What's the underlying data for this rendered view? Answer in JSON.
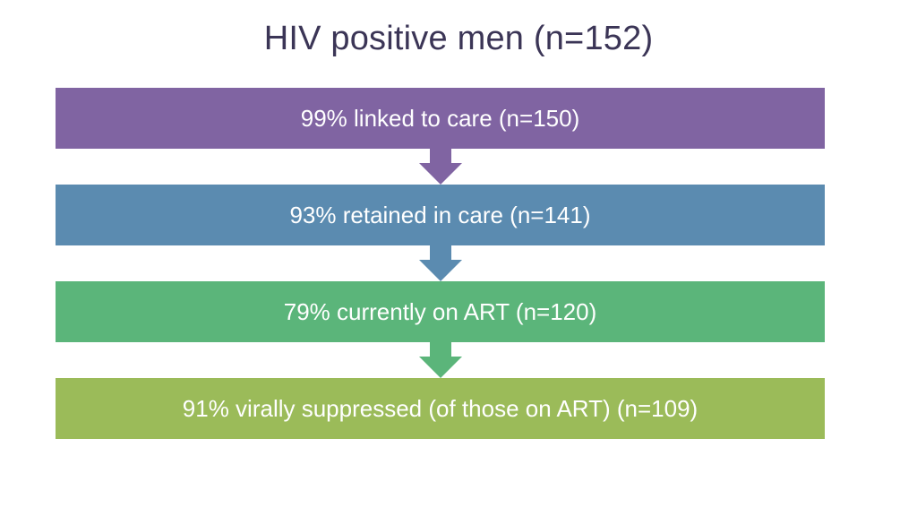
{
  "title": "HIV positive men (n=152)",
  "steps": [
    {
      "label": "99% linked to care (n=150)",
      "color": "#8064a2"
    },
    {
      "label": "93% retained in care (n=141)",
      "color": "#5b8bb0"
    },
    {
      "label": "79% currently on ART (n=120)",
      "color": "#5bb57a"
    },
    {
      "label": "91% virally suppressed (of those on ART)  (n=109)",
      "color": "#9bbb59"
    }
  ],
  "arrows": [
    {
      "icon": "down-arrow-icon",
      "color": "#8064a2"
    },
    {
      "icon": "down-arrow-icon",
      "color": "#5b8bb0"
    },
    {
      "icon": "down-arrow-icon",
      "color": "#5bb57a"
    }
  ]
}
